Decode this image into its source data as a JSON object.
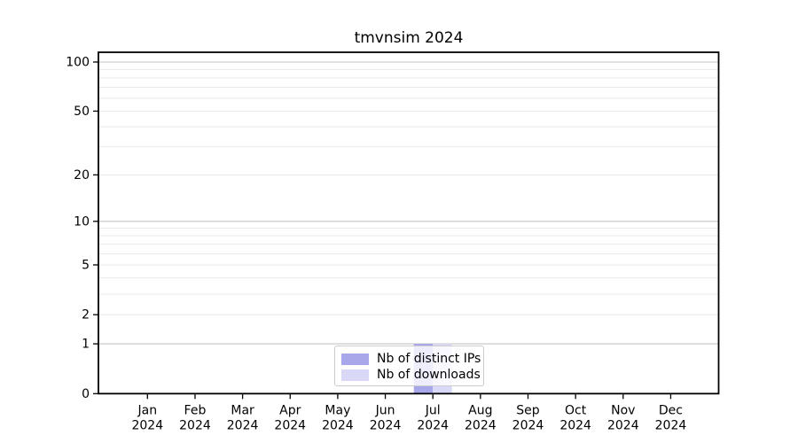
{
  "chart_data": {
    "type": "bar",
    "title": "tmvnsim 2024",
    "categories": [
      "Jan 2024",
      "Feb 2024",
      "Mar 2024",
      "Apr 2024",
      "May 2024",
      "Jun 2024",
      "Jul 2024",
      "Aug 2024",
      "Sep 2024",
      "Oct 2024",
      "Nov 2024",
      "Dec 2024"
    ],
    "x_tick_month": [
      "Jan",
      "Feb",
      "Mar",
      "Apr",
      "May",
      "Jun",
      "Jul",
      "Aug",
      "Sep",
      "Oct",
      "Nov",
      "Dec"
    ],
    "x_tick_year": "2024",
    "series": [
      {
        "name": "Nb of distinct IPs",
        "color": "#a7a7ea",
        "values": [
          0,
          0,
          0,
          0,
          0,
          0,
          1,
          0,
          0,
          0,
          0,
          0
        ]
      },
      {
        "name": "Nb of downloads",
        "color": "#d9d9f7",
        "values": [
          0,
          0,
          0,
          0,
          0,
          0,
          1,
          0,
          0,
          0,
          0,
          0
        ]
      }
    ],
    "xlabel": "",
    "ylabel": "",
    "y_scale": "log1p",
    "y_tick_labels": [
      0,
      1,
      2,
      5,
      10,
      20,
      50,
      100
    ],
    "y_decade_gridlines": [
      1,
      10,
      100
    ],
    "y_minor_gridlines": [
      2,
      3,
      4,
      5,
      6,
      7,
      8,
      9,
      20,
      30,
      40,
      50,
      60,
      70,
      80,
      90
    ],
    "ylim": [
      0,
      115
    ],
    "grid": "horizontal-only",
    "legend_position": "lower center",
    "colors": {
      "spine": "#000000",
      "decade_grid": "#c3c3c3",
      "minor_grid": "#e9e9e9",
      "tick_text": "#000000"
    }
  }
}
